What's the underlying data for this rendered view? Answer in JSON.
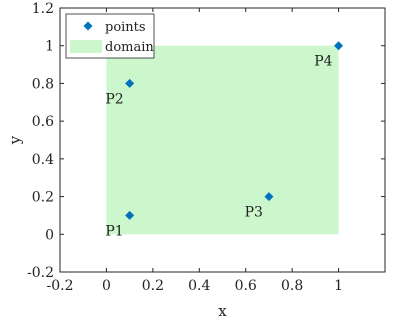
{
  "chart_data": {
    "type": "scatter",
    "title": "",
    "xlabel": "x",
    "ylabel": "y",
    "xlim": [
      -0.2,
      1.2
    ],
    "ylim": [
      -0.2,
      1.2
    ],
    "xticks": [
      -0.2,
      0,
      0.2,
      0.4,
      0.6,
      0.8,
      1
    ],
    "xtick_labels": [
      "-0.2",
      "0",
      "0.2",
      "0.4",
      "0.6",
      "0.8",
      "1"
    ],
    "yticks": [
      -0.2,
      0,
      0.2,
      0.4,
      0.6,
      0.8,
      1,
      1.2
    ],
    "ytick_labels": [
      "-0.2",
      "0",
      "0.2",
      "0.4",
      "0.6",
      "0.8",
      "1",
      "1.2"
    ],
    "grid": false,
    "legend_position": "top-left",
    "legend": [
      {
        "label": "points",
        "marker": "diamond",
        "color": "#0072BD"
      },
      {
        "label": "domain",
        "marker": "patch",
        "color": "#ccf7cc"
      }
    ],
    "domain": {
      "name": "domain",
      "x": [
        0,
        1
      ],
      "y": [
        0,
        1
      ],
      "color": "#ccf7cc"
    },
    "series": [
      {
        "name": "points",
        "color": "#0072BD",
        "marker": "diamond",
        "points": [
          {
            "label": "P1",
            "x": 0.1,
            "y": 0.1
          },
          {
            "label": "P2",
            "x": 0.1,
            "y": 0.8
          },
          {
            "label": "P3",
            "x": 0.7,
            "y": 0.2
          },
          {
            "label": "P4",
            "x": 1.0,
            "y": 1.0
          }
        ]
      }
    ]
  }
}
